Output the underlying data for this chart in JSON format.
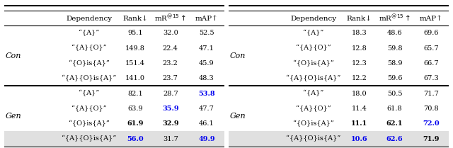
{
  "tables": [
    {
      "rows": [
        {
          "dep": "“{A}”",
          "vals": [
            "95.1",
            "32.0",
            "52.5"
          ],
          "bold": [],
          "blue": [],
          "group": "Con"
        },
        {
          "dep": "“{A}{O}”",
          "vals": [
            "149.8",
            "22.4",
            "47.1"
          ],
          "bold": [],
          "blue": [],
          "group": "Con"
        },
        {
          "dep": "“{O}is{A}”",
          "vals": [
            "151.4",
            "23.2",
            "45.9"
          ],
          "bold": [],
          "blue": [],
          "group": "Con"
        },
        {
          "dep": "“{A}{O}is{A}”",
          "vals": [
            "141.0",
            "23.7",
            "48.3"
          ],
          "bold": [],
          "blue": [],
          "group": "Con"
        },
        {
          "dep": "“{A}”",
          "vals": [
            "82.1",
            "28.7",
            "53.8"
          ],
          "bold": [
            2
          ],
          "blue": [
            2
          ],
          "group": "Gen"
        },
        {
          "dep": "“{A}{O}”",
          "vals": [
            "63.9",
            "35.9",
            "47.7"
          ],
          "bold": [
            1
          ],
          "blue": [
            1
          ],
          "group": "Gen"
        },
        {
          "dep": "“{O}is{A}”",
          "vals": [
            "61.9",
            "32.9",
            "46.1"
          ],
          "bold": [
            0,
            1
          ],
          "blue": [],
          "group": "Gen"
        },
        {
          "dep": "“{A}{O}is{A}”",
          "vals": [
            "56.0",
            "31.7",
            "49.9"
          ],
          "bold": [
            0,
            2
          ],
          "blue": [
            0,
            2
          ],
          "group": "Gen",
          "shaded": true
        }
      ]
    },
    {
      "rows": [
        {
          "dep": "“{A}”",
          "vals": [
            "18.3",
            "48.6",
            "69.6"
          ],
          "bold": [],
          "blue": [],
          "group": "Con"
        },
        {
          "dep": "“{A}{O}”",
          "vals": [
            "12.8",
            "59.8",
            "65.7"
          ],
          "bold": [],
          "blue": [],
          "group": "Con"
        },
        {
          "dep": "“{O}is{A}”",
          "vals": [
            "12.3",
            "58.9",
            "66.7"
          ],
          "bold": [],
          "blue": [],
          "group": "Con"
        },
        {
          "dep": "“{A}{O}is{A}”",
          "vals": [
            "12.2",
            "59.6",
            "67.3"
          ],
          "bold": [],
          "blue": [],
          "group": "Con"
        },
        {
          "dep": "“{A}”",
          "vals": [
            "18.0",
            "50.5",
            "71.7"
          ],
          "bold": [],
          "blue": [],
          "group": "Gen"
        },
        {
          "dep": "“{A}{O}”",
          "vals": [
            "11.4",
            "61.8",
            "70.8"
          ],
          "bold": [],
          "blue": [],
          "group": "Gen"
        },
        {
          "dep": "“{O}is{A}”",
          "vals": [
            "11.1",
            "62.1",
            "72.0"
          ],
          "bold": [
            0,
            1
          ],
          "blue": [
            2
          ],
          "group": "Gen"
        },
        {
          "dep": "“{A}{O}is{A}”",
          "vals": [
            "10.6",
            "62.6",
            "71.9"
          ],
          "bold": [
            2
          ],
          "blue": [
            0,
            1
          ],
          "group": "Gen",
          "shaded": true
        }
      ]
    }
  ],
  "col_header": [
    "Dependency",
    "Rank↓",
    "mAP↑"
  ],
  "fig_width": 6.4,
  "fig_height": 2.09,
  "dpi": 100,
  "shaded_color": "#e0e0e0",
  "blue_color": "#0000ee",
  "fontsize": 7.0,
  "header_fontsize": 7.5
}
